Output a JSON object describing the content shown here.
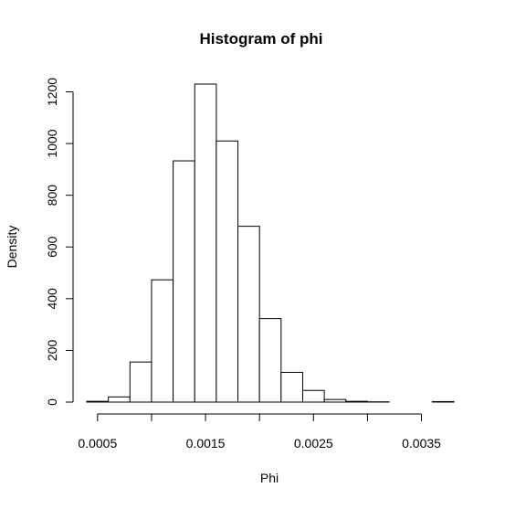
{
  "chart_data": {
    "type": "bar",
    "title": "Histogram of phi",
    "xlabel": "Phi",
    "ylabel": "Density",
    "bin_width": 0.0002,
    "bins": [
      {
        "x0": 0.0004,
        "x1": 0.0006,
        "value": 3
      },
      {
        "x0": 0.0006,
        "x1": 0.0008,
        "value": 20
      },
      {
        "x0": 0.0008,
        "x1": 0.001,
        "value": 155
      },
      {
        "x0": 0.001,
        "x1": 0.0012,
        "value": 473
      },
      {
        "x0": 0.0012,
        "x1": 0.0014,
        "value": 933
      },
      {
        "x0": 0.0014,
        "x1": 0.0016,
        "value": 1230
      },
      {
        "x0": 0.0016,
        "x1": 0.0018,
        "value": 1010
      },
      {
        "x0": 0.0018,
        "x1": 0.002,
        "value": 680
      },
      {
        "x0": 0.002,
        "x1": 0.0022,
        "value": 323
      },
      {
        "x0": 0.0022,
        "x1": 0.0024,
        "value": 115
      },
      {
        "x0": 0.0024,
        "x1": 0.0026,
        "value": 45
      },
      {
        "x0": 0.0026,
        "x1": 0.0028,
        "value": 10
      },
      {
        "x0": 0.0028,
        "x1": 0.003,
        "value": 3
      },
      {
        "x0": 0.003,
        "x1": 0.0032,
        "value": 1
      },
      {
        "x0": 0.0032,
        "x1": 0.0034,
        "value": 0
      },
      {
        "x0": 0.0034,
        "x1": 0.0036,
        "value": 0
      },
      {
        "x0": 0.0036,
        "x1": 0.0038,
        "value": 2
      }
    ],
    "xlim": [
      0.0004,
      0.0038
    ],
    "ylim": [
      0,
      1230
    ],
    "x_ticks": [
      0.0005,
      0.001,
      0.0015,
      0.002,
      0.0025,
      0.003,
      0.0035
    ],
    "x_tick_labels": [
      "0.0005",
      "",
      "0.0015",
      "",
      "0.0025",
      "",
      "0.0035"
    ],
    "y_ticks": [
      0,
      200,
      400,
      600,
      800,
      1000,
      1200
    ],
    "y_tick_labels": [
      "0",
      "200",
      "400",
      "600",
      "800",
      "1000",
      "1200"
    ],
    "grid": false,
    "bar_fill": "#ffffff",
    "bar_stroke": "#000000"
  }
}
